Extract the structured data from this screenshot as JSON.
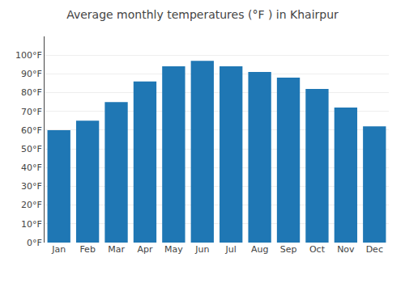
{
  "chart_data": {
    "type": "bar",
    "title": "Average monthly temperatures (°F ) in Khairpur",
    "categories": [
      "Jan",
      "Feb",
      "Mar",
      "Apr",
      "May",
      "Jun",
      "Jul",
      "Aug",
      "Sep",
      "Oct",
      "Nov",
      "Dec"
    ],
    "values": [
      60,
      65,
      75,
      86,
      94,
      97,
      94,
      91,
      88,
      82,
      72,
      62
    ],
    "ylim": [
      0,
      110
    ],
    "yticks": [
      {
        "value": 0,
        "label": "0°F"
      },
      {
        "value": 10,
        "label": "10°F"
      },
      {
        "value": 20,
        "label": "20°F"
      },
      {
        "value": 30,
        "label": "30°F"
      },
      {
        "value": 40,
        "label": "40°F"
      },
      {
        "value": 50,
        "label": "50°F"
      },
      {
        "value": 60,
        "label": "60°F"
      },
      {
        "value": 70,
        "label": "70°F"
      },
      {
        "value": 80,
        "label": "80°F"
      },
      {
        "value": 90,
        "label": "90°F"
      },
      {
        "value": 100,
        "label": "100°F"
      }
    ],
    "grid": true
  }
}
